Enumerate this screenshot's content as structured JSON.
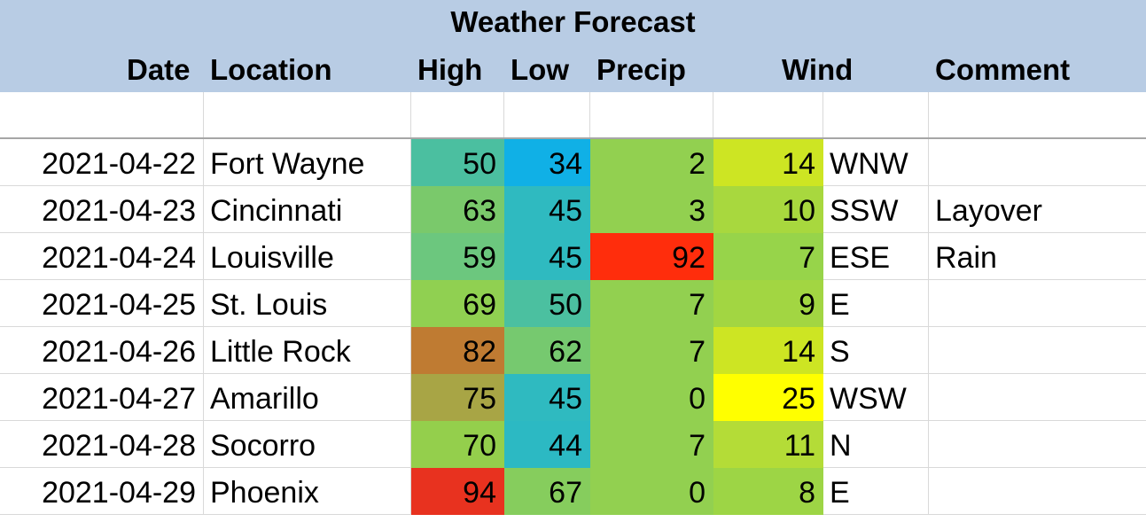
{
  "sheet": {
    "title": "Weather Forecast",
    "headers": {
      "date": "Date",
      "location": "Location",
      "high": "High",
      "low": "Low",
      "precip": "Precip",
      "wind": "Wind",
      "comment": "Comment"
    },
    "rows": [
      {
        "date": "2021-04-22",
        "location": "Fort Wayne",
        "high": "50",
        "low": "34",
        "precip": "2",
        "wind": "14",
        "dir": "WNW",
        "comment": "",
        "high_color": "#4bbfa0",
        "low_color": "#10b0e6",
        "precip_color": "#92d050",
        "wind_color": "#cde523"
      },
      {
        "date": "2021-04-23",
        "location": "Cincinnati",
        "high": "63",
        "low": "45",
        "precip": "3",
        "wind": "10",
        "dir": "SSW",
        "comment": "Layover",
        "high_color": "#7ac96b",
        "low_color": "#2fbac0",
        "precip_color": "#92d050",
        "wind_color": "#a8d83e"
      },
      {
        "date": "2021-04-24",
        "location": "Louisville",
        "high": "59",
        "low": "45",
        "precip": "92",
        "wind": "7",
        "dir": "ESE",
        "comment": "Rain",
        "high_color": "#6cc77e",
        "low_color": "#2fbac0",
        "precip_color": "#ff2d0c",
        "wind_color": "#97d44a"
      },
      {
        "date": "2021-04-25",
        "location": "St. Louis",
        "high": "69",
        "low": "50",
        "precip": "7",
        "wind": "9",
        "dir": "E",
        "comment": "",
        "high_color": "#90d051",
        "low_color": "#4bc0a0",
        "precip_color": "#92d050",
        "wind_color": "#a2d642"
      },
      {
        "date": "2021-04-26",
        "location": "Little Rock",
        "high": "82",
        "low": "62",
        "precip": "7",
        "wind": "14",
        "dir": "S",
        "comment": "",
        "high_color": "#bf7b32",
        "low_color": "#76c96f",
        "precip_color": "#92d050",
        "wind_color": "#cde523"
      },
      {
        "date": "2021-04-27",
        "location": "Amarillo",
        "high": "75",
        "low": "45",
        "precip": "0",
        "wind": "25",
        "dir": "WSW",
        "comment": "",
        "high_color": "#a8a545",
        "low_color": "#2fbac0",
        "precip_color": "#92d050",
        "wind_color": "#ffff00"
      },
      {
        "date": "2021-04-28",
        "location": "Socorro",
        "high": "70",
        "low": "44",
        "precip": "7",
        "wind": "11",
        "dir": "N",
        "comment": "",
        "high_color": "#94cf4c",
        "low_color": "#2cb9c3",
        "precip_color": "#92d050",
        "wind_color": "#b4dc37"
      },
      {
        "date": "2021-04-29",
        "location": "Phoenix",
        "high": "94",
        "low": "67",
        "precip": "0",
        "wind": "8",
        "dir": "E",
        "comment": "",
        "high_color": "#e8321f",
        "low_color": "#86cd5d",
        "precip_color": "#92d050",
        "wind_color": "#9dd545"
      }
    ]
  },
  "colors": {
    "header_bg": "#b8cce4",
    "gridline": "#d9d9d9"
  }
}
